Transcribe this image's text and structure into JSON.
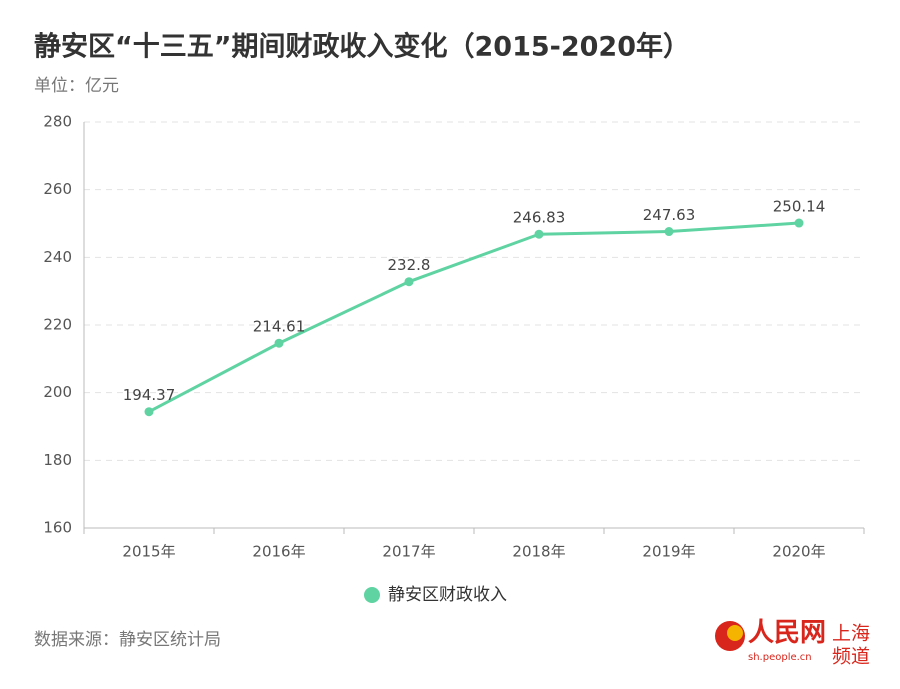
{
  "chart_data": {
    "type": "line",
    "title": "静安区“十三五”期间财政收入变化（2015-2020年）",
    "subtitle": "单位：亿元",
    "categories": [
      "2015年",
      "2016年",
      "2017年",
      "2018年",
      "2019年",
      "2020年"
    ],
    "series": [
      {
        "name": "静安区财政收入",
        "color": "#5fd3a2",
        "values": [
          194.37,
          214.61,
          232.8,
          246.83,
          247.63,
          250.14
        ]
      }
    ],
    "ylim": [
      160,
      280
    ],
    "yticks": [
      160,
      180,
      200,
      220,
      240,
      260,
      280
    ],
    "grid": true,
    "legend": "bottom",
    "source": "数据来源：静安区统计局"
  },
  "logo": {
    "name": "人民网",
    "url": "sh.people.cn",
    "channel_1": "上海",
    "channel_2": "频道"
  }
}
